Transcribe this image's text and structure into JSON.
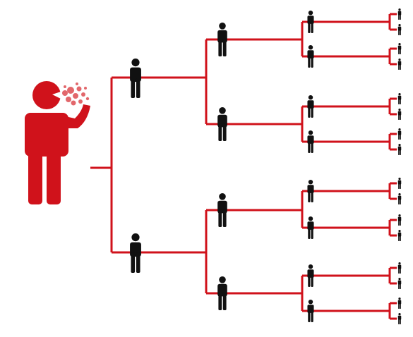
{
  "diagram": {
    "description_visible_text": "",
    "colors": {
      "source_person": "#d0121b",
      "tree_lines": "#d0121b",
      "person": "#111111",
      "cough_cloud": "#e2676b"
    },
    "icons": {
      "source": "coughing-person-icon",
      "node": "person-icon",
      "cloud": "cough-cloud-icon"
    },
    "tree": {
      "generations": 5,
      "branching_factor": 2
    }
  }
}
